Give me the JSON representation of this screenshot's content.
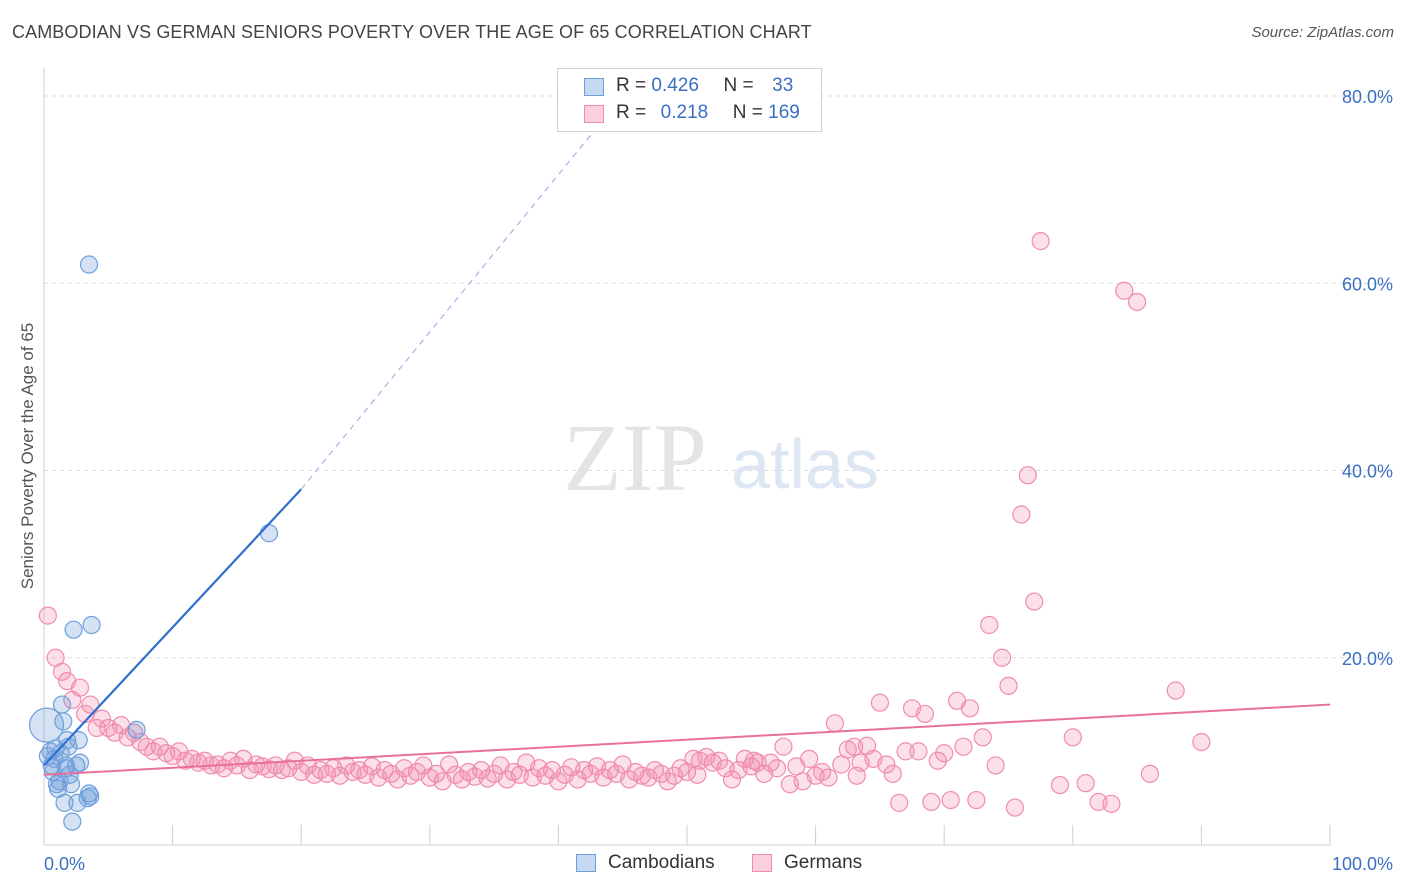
{
  "header": {
    "title": "CAMBODIAN VS GERMAN SENIORS POVERTY OVER THE AGE OF 65 CORRELATION CHART",
    "source": "Source: ZipAtlas.com"
  },
  "watermark": {
    "zip": "ZIP",
    "atlas": "atlas"
  },
  "legend": {
    "rows": [
      {
        "r_label": "R =",
        "r_value": "0.426",
        "n_label": "N =",
        "n_value": "33",
        "color": "#6fa0dc"
      },
      {
        "r_label": "R =",
        "r_value": "0.218",
        "n_label": "N =",
        "n_value": "169",
        "color": "#f08cb0"
      }
    ]
  },
  "bottom_legend": [
    {
      "label": "Cambodians",
      "color": "#6fa0dc"
    },
    {
      "label": "Germans",
      "color": "#f08cb0"
    }
  ],
  "chart_data": {
    "type": "scatter",
    "title": "CAMBODIAN VS GERMAN SENIORS POVERTY OVER THE AGE OF 65 CORRELATION CHART",
    "xlabel": "",
    "ylabel": "Seniors Poverty Over the Age of 65",
    "xlim": [
      0,
      100
    ],
    "ylim": [
      0,
      80
    ],
    "x_tick_labels": [
      "0.0%",
      "100.0%"
    ],
    "y_ticks": [
      20,
      40,
      60,
      80
    ],
    "y_tick_labels": [
      "20.0%",
      "40.0%",
      "60.0%",
      "80.0%"
    ],
    "grid": "horizontal dashed",
    "legend_position": "top-center",
    "series": [
      {
        "name": "Cambodians",
        "color": "#6fa0dc",
        "points": [
          [
            0.2,
            12.8
          ],
          [
            0.3,
            9.5
          ],
          [
            0.5,
            10.0
          ],
          [
            0.6,
            8.5
          ],
          [
            0.7,
            7.8
          ],
          [
            0.8,
            9.2
          ],
          [
            0.9,
            10.3
          ],
          [
            1.0,
            6.5
          ],
          [
            1.1,
            6.0
          ],
          [
            1.2,
            6.8
          ],
          [
            1.3,
            9.8
          ],
          [
            1.4,
            15.0
          ],
          [
            1.5,
            13.2
          ],
          [
            1.6,
            4.5
          ],
          [
            1.7,
            8.2
          ],
          [
            1.8,
            11.2
          ],
          [
            1.9,
            10.5
          ],
          [
            2.0,
            7.5
          ],
          [
            2.1,
            6.5
          ],
          [
            2.2,
            2.5
          ],
          [
            2.3,
            23.0
          ],
          [
            2.5,
            8.5
          ],
          [
            2.6,
            4.5
          ],
          [
            2.7,
            11.2
          ],
          [
            2.8,
            8.8
          ],
          [
            3.4,
            5.0
          ],
          [
            3.5,
            5.5
          ],
          [
            3.6,
            5.2
          ],
          [
            3.7,
            23.5
          ],
          [
            1.7,
            8.5
          ],
          [
            7.2,
            12.3
          ],
          [
            17.5,
            33.3
          ],
          [
            3.5,
            62.0
          ]
        ],
        "trend": {
          "x0": 0,
          "y0": 8.5,
          "x1": 20,
          "y1": 38.0,
          "dash_x_end": 45,
          "dash_y_end": 80
        }
      },
      {
        "name": "Germans",
        "color": "#f08cb0",
        "points": [
          [
            0.3,
            24.5
          ],
          [
            0.9,
            20.0
          ],
          [
            1.4,
            18.5
          ],
          [
            1.8,
            17.5
          ],
          [
            2.2,
            15.5
          ],
          [
            2.8,
            16.8
          ],
          [
            3.2,
            14.0
          ],
          [
            3.6,
            15.0
          ],
          [
            4.1,
            12.5
          ],
          [
            4.5,
            13.5
          ],
          [
            5.0,
            12.5
          ],
          [
            5.5,
            12.0
          ],
          [
            6.0,
            12.8
          ],
          [
            6.5,
            11.5
          ],
          [
            7.0,
            12.0
          ],
          [
            7.5,
            11.0
          ],
          [
            8.0,
            10.5
          ],
          [
            8.5,
            10.0
          ],
          [
            9.0,
            10.5
          ],
          [
            9.5,
            9.8
          ],
          [
            10.0,
            9.5
          ],
          [
            10.5,
            10.0
          ],
          [
            11.0,
            9.0
          ],
          [
            11.5,
            9.2
          ],
          [
            12.0,
            8.8
          ],
          [
            12.5,
            9.0
          ],
          [
            13.0,
            8.5
          ],
          [
            13.5,
            8.6
          ],
          [
            14.0,
            8.2
          ],
          [
            14.5,
            9.0
          ],
          [
            15.0,
            8.5
          ],
          [
            15.5,
            9.2
          ],
          [
            16.0,
            8.0
          ],
          [
            16.5,
            8.6
          ],
          [
            17.0,
            8.4
          ],
          [
            17.5,
            8.1
          ],
          [
            18.0,
            8.5
          ],
          [
            18.5,
            8.0
          ],
          [
            19.0,
            8.2
          ],
          [
            19.5,
            9.0
          ],
          [
            20.0,
            7.8
          ],
          [
            20.5,
            8.5
          ],
          [
            21.0,
            7.5
          ],
          [
            21.5,
            8.0
          ],
          [
            22.0,
            7.6
          ],
          [
            22.5,
            8.2
          ],
          [
            23.0,
            7.4
          ],
          [
            23.5,
            8.5
          ],
          [
            24.0,
            7.8
          ],
          [
            24.5,
            8.0
          ],
          [
            25.0,
            7.5
          ],
          [
            25.5,
            8.4
          ],
          [
            26.0,
            7.2
          ],
          [
            26.5,
            8.0
          ],
          [
            27.0,
            7.6
          ],
          [
            27.5,
            7.0
          ],
          [
            28.0,
            8.2
          ],
          [
            28.5,
            7.4
          ],
          [
            29.0,
            7.8
          ],
          [
            29.5,
            8.5
          ],
          [
            30.0,
            7.2
          ],
          [
            30.5,
            7.6
          ],
          [
            31.0,
            6.8
          ],
          [
            31.5,
            8.6
          ],
          [
            32.0,
            7.5
          ],
          [
            32.5,
            7.0
          ],
          [
            33.0,
            7.8
          ],
          [
            33.5,
            7.3
          ],
          [
            34.0,
            8.0
          ],
          [
            34.5,
            7.1
          ],
          [
            35.0,
            7.6
          ],
          [
            35.5,
            8.5
          ],
          [
            36.0,
            7.0
          ],
          [
            36.5,
            7.8
          ],
          [
            37.0,
            7.5
          ],
          [
            37.5,
            8.8
          ],
          [
            38.0,
            7.2
          ],
          [
            38.5,
            8.2
          ],
          [
            39.0,
            7.4
          ],
          [
            39.5,
            8.0
          ],
          [
            40.0,
            6.8
          ],
          [
            40.5,
            7.5
          ],
          [
            41.0,
            8.3
          ],
          [
            41.5,
            7.0
          ],
          [
            42.0,
            8.0
          ],
          [
            42.5,
            7.6
          ],
          [
            43.0,
            8.4
          ],
          [
            43.5,
            7.2
          ],
          [
            44.0,
            8.0
          ],
          [
            44.5,
            7.6
          ],
          [
            45.0,
            8.6
          ],
          [
            45.5,
            7.0
          ],
          [
            46.0,
            7.8
          ],
          [
            46.5,
            7.4
          ],
          [
            47.0,
            7.2
          ],
          [
            47.5,
            8.0
          ],
          [
            48.0,
            7.6
          ],
          [
            48.5,
            6.8
          ],
          [
            49.0,
            7.4
          ],
          [
            49.5,
            8.2
          ],
          [
            50.0,
            7.8
          ],
          [
            50.5,
            9.2
          ],
          [
            51.0,
            9.0
          ],
          [
            51.5,
            9.4
          ],
          [
            52.0,
            8.8
          ],
          [
            52.5,
            9.0
          ],
          [
            53.0,
            8.2
          ],
          [
            53.5,
            7.0
          ],
          [
            54.0,
            8.0
          ],
          [
            54.5,
            9.2
          ],
          [
            55.0,
            8.4
          ],
          [
            55.5,
            8.8
          ],
          [
            56.0,
            7.6
          ],
          [
            56.5,
            8.8
          ],
          [
            57.0,
            8.2
          ],
          [
            57.5,
            10.5
          ],
          [
            58.0,
            6.5
          ],
          [
            58.5,
            8.4
          ],
          [
            59.0,
            6.8
          ],
          [
            59.5,
            9.2
          ],
          [
            60.0,
            7.4
          ],
          [
            60.5,
            7.8
          ],
          [
            61.0,
            7.2
          ],
          [
            61.5,
            13.0
          ],
          [
            62.0,
            8.6
          ],
          [
            62.5,
            10.2
          ],
          [
            63.0,
            10.5
          ],
          [
            63.5,
            8.8
          ],
          [
            64.0,
            10.6
          ],
          [
            64.5,
            9.2
          ],
          [
            65.0,
            15.2
          ],
          [
            65.5,
            8.6
          ],
          [
            66.0,
            7.6
          ],
          [
            66.5,
            4.5
          ],
          [
            67.0,
            10.0
          ],
          [
            67.5,
            14.6
          ],
          [
            68.0,
            10.0
          ],
          [
            68.5,
            14.0
          ],
          [
            69.0,
            4.6
          ],
          [
            69.5,
            9.0
          ],
          [
            70.0,
            9.8
          ],
          [
            70.5,
            4.8
          ],
          [
            71.0,
            15.4
          ],
          [
            71.5,
            10.5
          ],
          [
            72.0,
            14.6
          ],
          [
            72.5,
            4.8
          ],
          [
            73.0,
            11.5
          ],
          [
            73.5,
            23.5
          ],
          [
            74.0,
            8.5
          ],
          [
            74.5,
            20.0
          ],
          [
            75.0,
            17.0
          ],
          [
            75.5,
            4.0
          ],
          [
            76.0,
            35.3
          ],
          [
            76.5,
            39.5
          ],
          [
            77.0,
            26.0
          ],
          [
            77.5,
            64.5
          ],
          [
            80.0,
            11.5
          ],
          [
            81.0,
            6.6
          ],
          [
            82.0,
            4.6
          ],
          [
            83.0,
            4.4
          ],
          [
            84.0,
            59.2
          ],
          [
            85.0,
            58.0
          ],
          [
            86.0,
            7.6
          ],
          [
            88.0,
            16.5
          ],
          [
            90.0,
            11.0
          ],
          [
            79.0,
            6.4
          ],
          [
            50.8,
            7.5
          ],
          [
            55.2,
            9.0
          ],
          [
            63.2,
            7.4
          ]
        ],
        "trend": {
          "x0": 0,
          "y0": 7.5,
          "x1": 100,
          "y1": 15.0
        }
      }
    ]
  }
}
